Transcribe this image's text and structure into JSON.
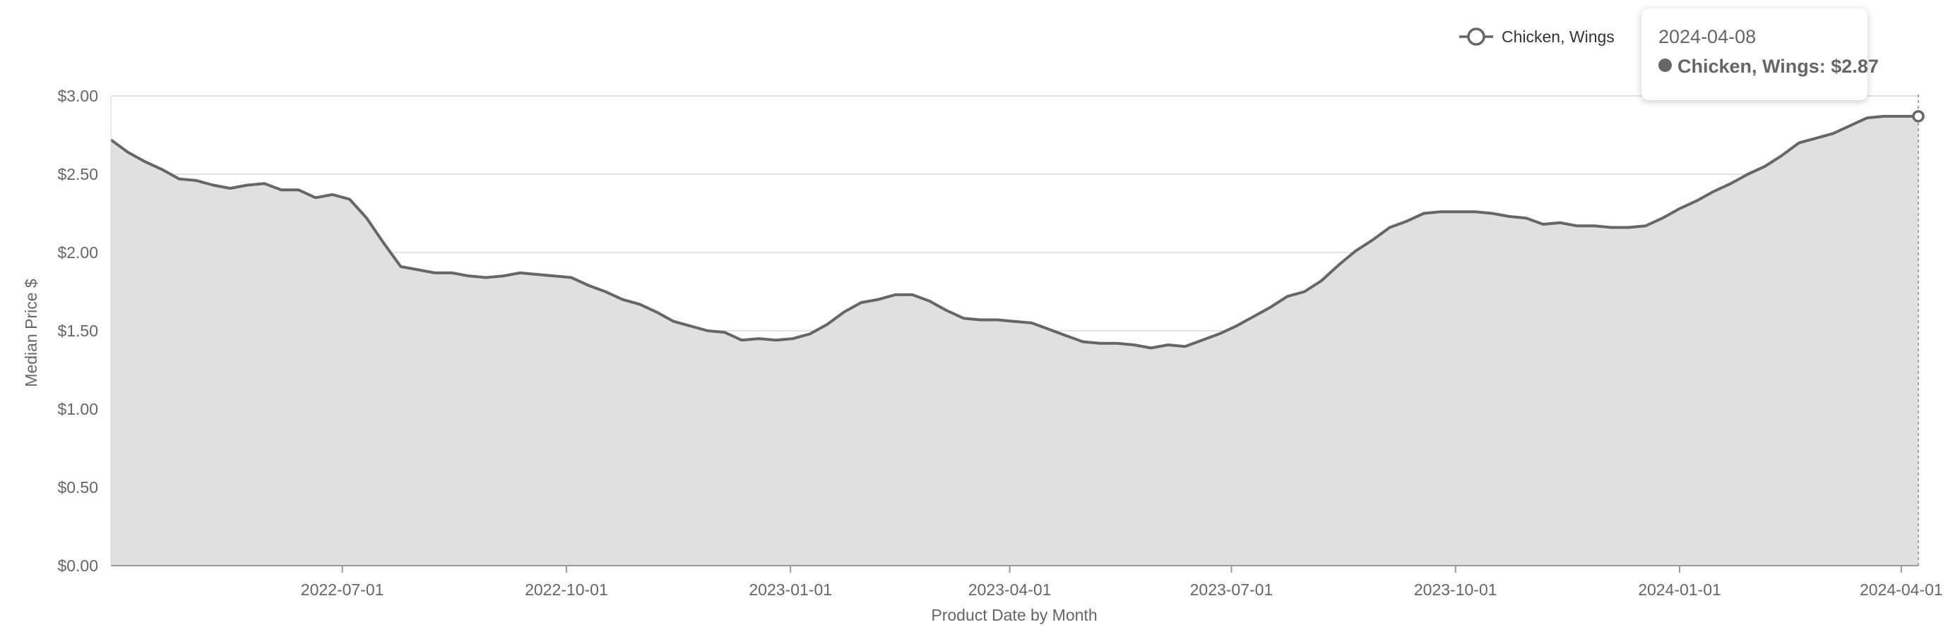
{
  "chart_data": {
    "type": "area",
    "title": "",
    "xlabel": "Product Date by Month",
    "ylabel": "Median Price $",
    "ylim": [
      0,
      3
    ],
    "xlim": [
      "2022-03-28",
      "2024-04-08"
    ],
    "y_ticks": [
      {
        "value": 0,
        "label": "$0.00"
      },
      {
        "value": 0.5,
        "label": "$0.50"
      },
      {
        "value": 1,
        "label": "$1.00"
      },
      {
        "value": 1.5,
        "label": "$1.50"
      },
      {
        "value": 2,
        "label": "$2.00"
      },
      {
        "value": 2.5,
        "label": "$2.50"
      },
      {
        "value": 3,
        "label": "$3.00"
      }
    ],
    "x_ticks": [
      {
        "date": "2022-07-01",
        "label": "2022-07-01"
      },
      {
        "date": "2022-10-01",
        "label": "2022-10-01"
      },
      {
        "date": "2023-01-01",
        "label": "2023-01-01"
      },
      {
        "date": "2023-04-01",
        "label": "2023-04-01"
      },
      {
        "date": "2023-07-01",
        "label": "2023-07-01"
      },
      {
        "date": "2023-10-01",
        "label": "2023-10-01"
      },
      {
        "date": "2024-01-01",
        "label": "2024-01-01"
      },
      {
        "date": "2024-04-01",
        "label": "2024-04-01"
      }
    ],
    "grid": true,
    "legend_position": "top-right",
    "series": [
      {
        "name": "Chicken, Wings",
        "color": "#666666",
        "fill_color": "#e0e0e0",
        "points": [
          [
            "2022-03-28",
            2.72
          ],
          [
            "2022-04-04",
            2.64
          ],
          [
            "2022-04-11",
            2.58
          ],
          [
            "2022-04-18",
            2.53
          ],
          [
            "2022-04-25",
            2.47
          ],
          [
            "2022-05-02",
            2.46
          ],
          [
            "2022-05-09",
            2.43
          ],
          [
            "2022-05-16",
            2.41
          ],
          [
            "2022-05-23",
            2.43
          ],
          [
            "2022-05-30",
            2.44
          ],
          [
            "2022-06-06",
            2.4
          ],
          [
            "2022-06-13",
            2.4
          ],
          [
            "2022-06-20",
            2.35
          ],
          [
            "2022-06-27",
            2.37
          ],
          [
            "2022-07-04",
            2.34
          ],
          [
            "2022-07-11",
            2.22
          ],
          [
            "2022-07-18",
            2.06
          ],
          [
            "2022-07-25",
            1.91
          ],
          [
            "2022-08-01",
            1.89
          ],
          [
            "2022-08-08",
            1.87
          ],
          [
            "2022-08-15",
            1.87
          ],
          [
            "2022-08-22",
            1.85
          ],
          [
            "2022-08-29",
            1.84
          ],
          [
            "2022-09-05",
            1.85
          ],
          [
            "2022-09-12",
            1.87
          ],
          [
            "2022-09-19",
            1.86
          ],
          [
            "2022-09-26",
            1.85
          ],
          [
            "2022-10-03",
            1.84
          ],
          [
            "2022-10-10",
            1.79
          ],
          [
            "2022-10-17",
            1.75
          ],
          [
            "2022-10-24",
            1.7
          ],
          [
            "2022-10-31",
            1.67
          ],
          [
            "2022-11-07",
            1.62
          ],
          [
            "2022-11-14",
            1.56
          ],
          [
            "2022-11-21",
            1.53
          ],
          [
            "2022-11-28",
            1.5
          ],
          [
            "2022-12-05",
            1.49
          ],
          [
            "2022-12-12",
            1.44
          ],
          [
            "2022-12-19",
            1.45
          ],
          [
            "2022-12-26",
            1.44
          ],
          [
            "2023-01-02",
            1.45
          ],
          [
            "2023-01-09",
            1.48
          ],
          [
            "2023-01-16",
            1.54
          ],
          [
            "2023-01-23",
            1.62
          ],
          [
            "2023-01-30",
            1.68
          ],
          [
            "2023-02-06",
            1.7
          ],
          [
            "2023-02-13",
            1.73
          ],
          [
            "2023-02-20",
            1.73
          ],
          [
            "2023-02-27",
            1.69
          ],
          [
            "2023-03-06",
            1.63
          ],
          [
            "2023-03-13",
            1.58
          ],
          [
            "2023-03-20",
            1.57
          ],
          [
            "2023-03-27",
            1.57
          ],
          [
            "2023-04-03",
            1.56
          ],
          [
            "2023-04-10",
            1.55
          ],
          [
            "2023-04-17",
            1.51
          ],
          [
            "2023-04-24",
            1.47
          ],
          [
            "2023-05-01",
            1.43
          ],
          [
            "2023-05-08",
            1.42
          ],
          [
            "2023-05-15",
            1.42
          ],
          [
            "2023-05-22",
            1.41
          ],
          [
            "2023-05-29",
            1.39
          ],
          [
            "2023-06-05",
            1.41
          ],
          [
            "2023-06-12",
            1.4
          ],
          [
            "2023-06-19",
            1.44
          ],
          [
            "2023-06-26",
            1.48
          ],
          [
            "2023-07-03",
            1.53
          ],
          [
            "2023-07-10",
            1.59
          ],
          [
            "2023-07-17",
            1.65
          ],
          [
            "2023-07-24",
            1.72
          ],
          [
            "2023-07-31",
            1.75
          ],
          [
            "2023-08-07",
            1.82
          ],
          [
            "2023-08-14",
            1.92
          ],
          [
            "2023-08-21",
            2.01
          ],
          [
            "2023-08-28",
            2.08
          ],
          [
            "2023-09-04",
            2.16
          ],
          [
            "2023-09-11",
            2.2
          ],
          [
            "2023-09-18",
            2.25
          ],
          [
            "2023-09-25",
            2.26
          ],
          [
            "2023-10-02",
            2.26
          ],
          [
            "2023-10-09",
            2.26
          ],
          [
            "2023-10-16",
            2.25
          ],
          [
            "2023-10-23",
            2.23
          ],
          [
            "2023-10-30",
            2.22
          ],
          [
            "2023-11-06",
            2.18
          ],
          [
            "2023-11-13",
            2.19
          ],
          [
            "2023-11-20",
            2.17
          ],
          [
            "2023-11-27",
            2.17
          ],
          [
            "2023-12-04",
            2.16
          ],
          [
            "2023-12-11",
            2.16
          ],
          [
            "2023-12-18",
            2.17
          ],
          [
            "2023-12-25",
            2.22
          ],
          [
            "2024-01-01",
            2.28
          ],
          [
            "2024-01-08",
            2.33
          ],
          [
            "2024-01-15",
            2.39
          ],
          [
            "2024-01-22",
            2.44
          ],
          [
            "2024-01-29",
            2.5
          ],
          [
            "2024-02-05",
            2.55
          ],
          [
            "2024-02-12",
            2.62
          ],
          [
            "2024-02-19",
            2.7
          ],
          [
            "2024-02-26",
            2.73
          ],
          [
            "2024-03-04",
            2.76
          ],
          [
            "2024-03-11",
            2.81
          ],
          [
            "2024-03-18",
            2.86
          ],
          [
            "2024-03-25",
            2.87
          ],
          [
            "2024-04-01",
            2.87
          ],
          [
            "2024-04-08",
            2.87
          ]
        ]
      }
    ],
    "tooltip": {
      "date": "2024-04-08",
      "series_name": "Chicken, Wings",
      "label": "Chicken, Wings: $2.87",
      "value": 2.87
    }
  }
}
